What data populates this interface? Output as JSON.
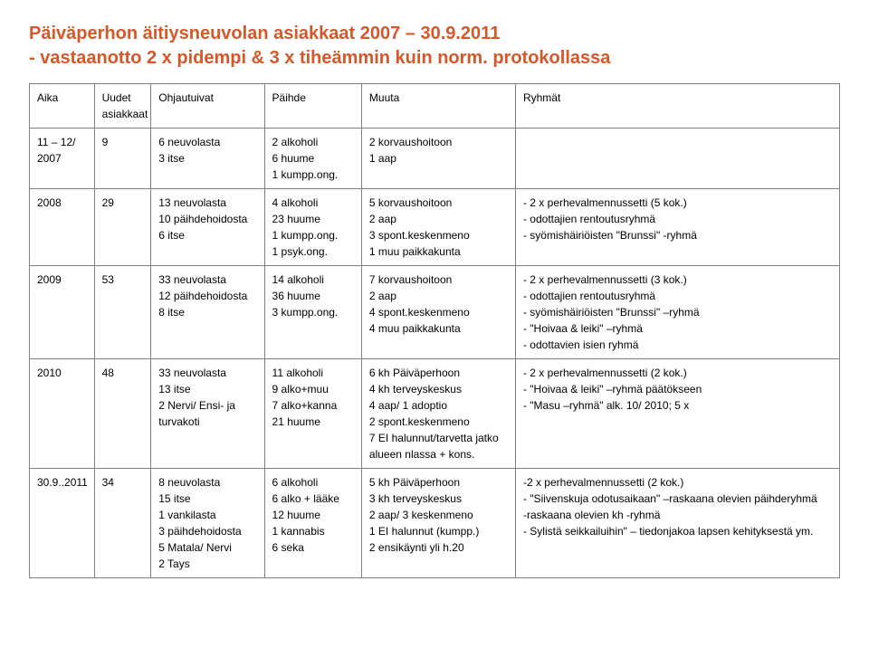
{
  "title_line1": "Päiväperhon äitiysneuvolan asiakkaat 2007 – 30.9.2011",
  "title_line2": "- vastaanotto 2 x pidempi & 3 x tiheämmin kuin norm. protokollassa",
  "headers": {
    "aika": "Aika",
    "uudet": "Uudet\nasiakkaat",
    "ohjautuivat": "Ohjautuivat",
    "paihde": "Päihde",
    "muuta": "Muuta",
    "ryhmat": "Ryhmät"
  },
  "rows": [
    {
      "aika": "11 – 12/\n2007",
      "uudet": "9",
      "ohj": "6 neuvolasta\n3 itse",
      "paihde": "2 alkoholi\n6 huume\n1 kumpp.ong.",
      "muuta": "2 korvaushoitoon\n1 aap",
      "ryhmat": ""
    },
    {
      "aika": "2008",
      "uudet": "29",
      "ohj": "13 neuvolasta\n10 päihdehoidosta\n6 itse",
      "paihde": "4 alkoholi\n23 huume\n1 kumpp.ong.\n1 psyk.ong.",
      "muuta": "5 korvaushoitoon\n2 aap\n3 spont.keskenmeno\n1 muu paikkakunta",
      "ryhmat": "- 2 x perhevalmennussetti (5 kok.)\n- odottajien rentoutusryhmä\n- syömishäiriöisten \"Brunssi\" -ryhmä"
    },
    {
      "aika": "2009",
      "uudet": "53",
      "ohj": "33 neuvolasta\n12 päihdehoidosta\n8 itse",
      "paihde": "14 alkoholi\n36 huume\n3 kumpp.ong.",
      "muuta": "7 korvaushoitoon\n2 aap\n4 spont.keskenmeno\n4 muu paikkakunta",
      "ryhmat": "- 2 x perhevalmennussetti (3 kok.)\n- odottajien rentoutusryhmä\n- syömishäiriöisten \"Brunssi\" –ryhmä\n- \"Hoivaa & leiki\" –ryhmä\n- odottavien isien ryhmä"
    },
    {
      "aika": "2010",
      "uudet": "48",
      "ohj": "33 neuvolasta\n13 itse\n2 Nervi/ Ensi- ja turvakoti",
      "paihde": "11 alkoholi\n9 alko+muu\n7 alko+kanna\n21 huume",
      "muuta": "6 kh Päiväperhoon\n4 kh terveyskeskus\n4 aap/ 1 adoptio\n2 spont.keskenmeno\n7 EI halunnut/tarvetta jatko alueen nlassa + kons.",
      "ryhmat": "- 2 x perhevalmennussetti (2 kok.)\n- \"Hoivaa & leiki\" –ryhmä päätökseen\n- \"Masu –ryhmä\" alk. 10/ 2010; 5 x"
    },
    {
      "aika": "30.9..2011",
      "uudet": "34",
      "ohj": "8 neuvolasta\n15 itse\n1 vankilasta\n3 päihdehoidosta\n5 Matala/ Nervi\n2 Tays",
      "paihde": "6 alkoholi\n6 alko + lääke\n12 huume\n1 kannabis\n6 seka",
      "muuta": "5 kh Päiväperhoon\n3 kh terveyskeskus\n2 aap/ 3 keskenmeno\n1 EI halunnut (kumpp.)\n2 ensikäynti yli h.20",
      "ryhmat": "-2 x perhevalmennussetti (2 kok.)\n- \"Siivenskuja odotusaikaan\" –raskaana olevien päihderyhmä\n-raskaana olevien kh -ryhmä\n- Sylistä seikkailuihin\" – tiedonjakoa lapsen kehityksestä ym."
    }
  ]
}
